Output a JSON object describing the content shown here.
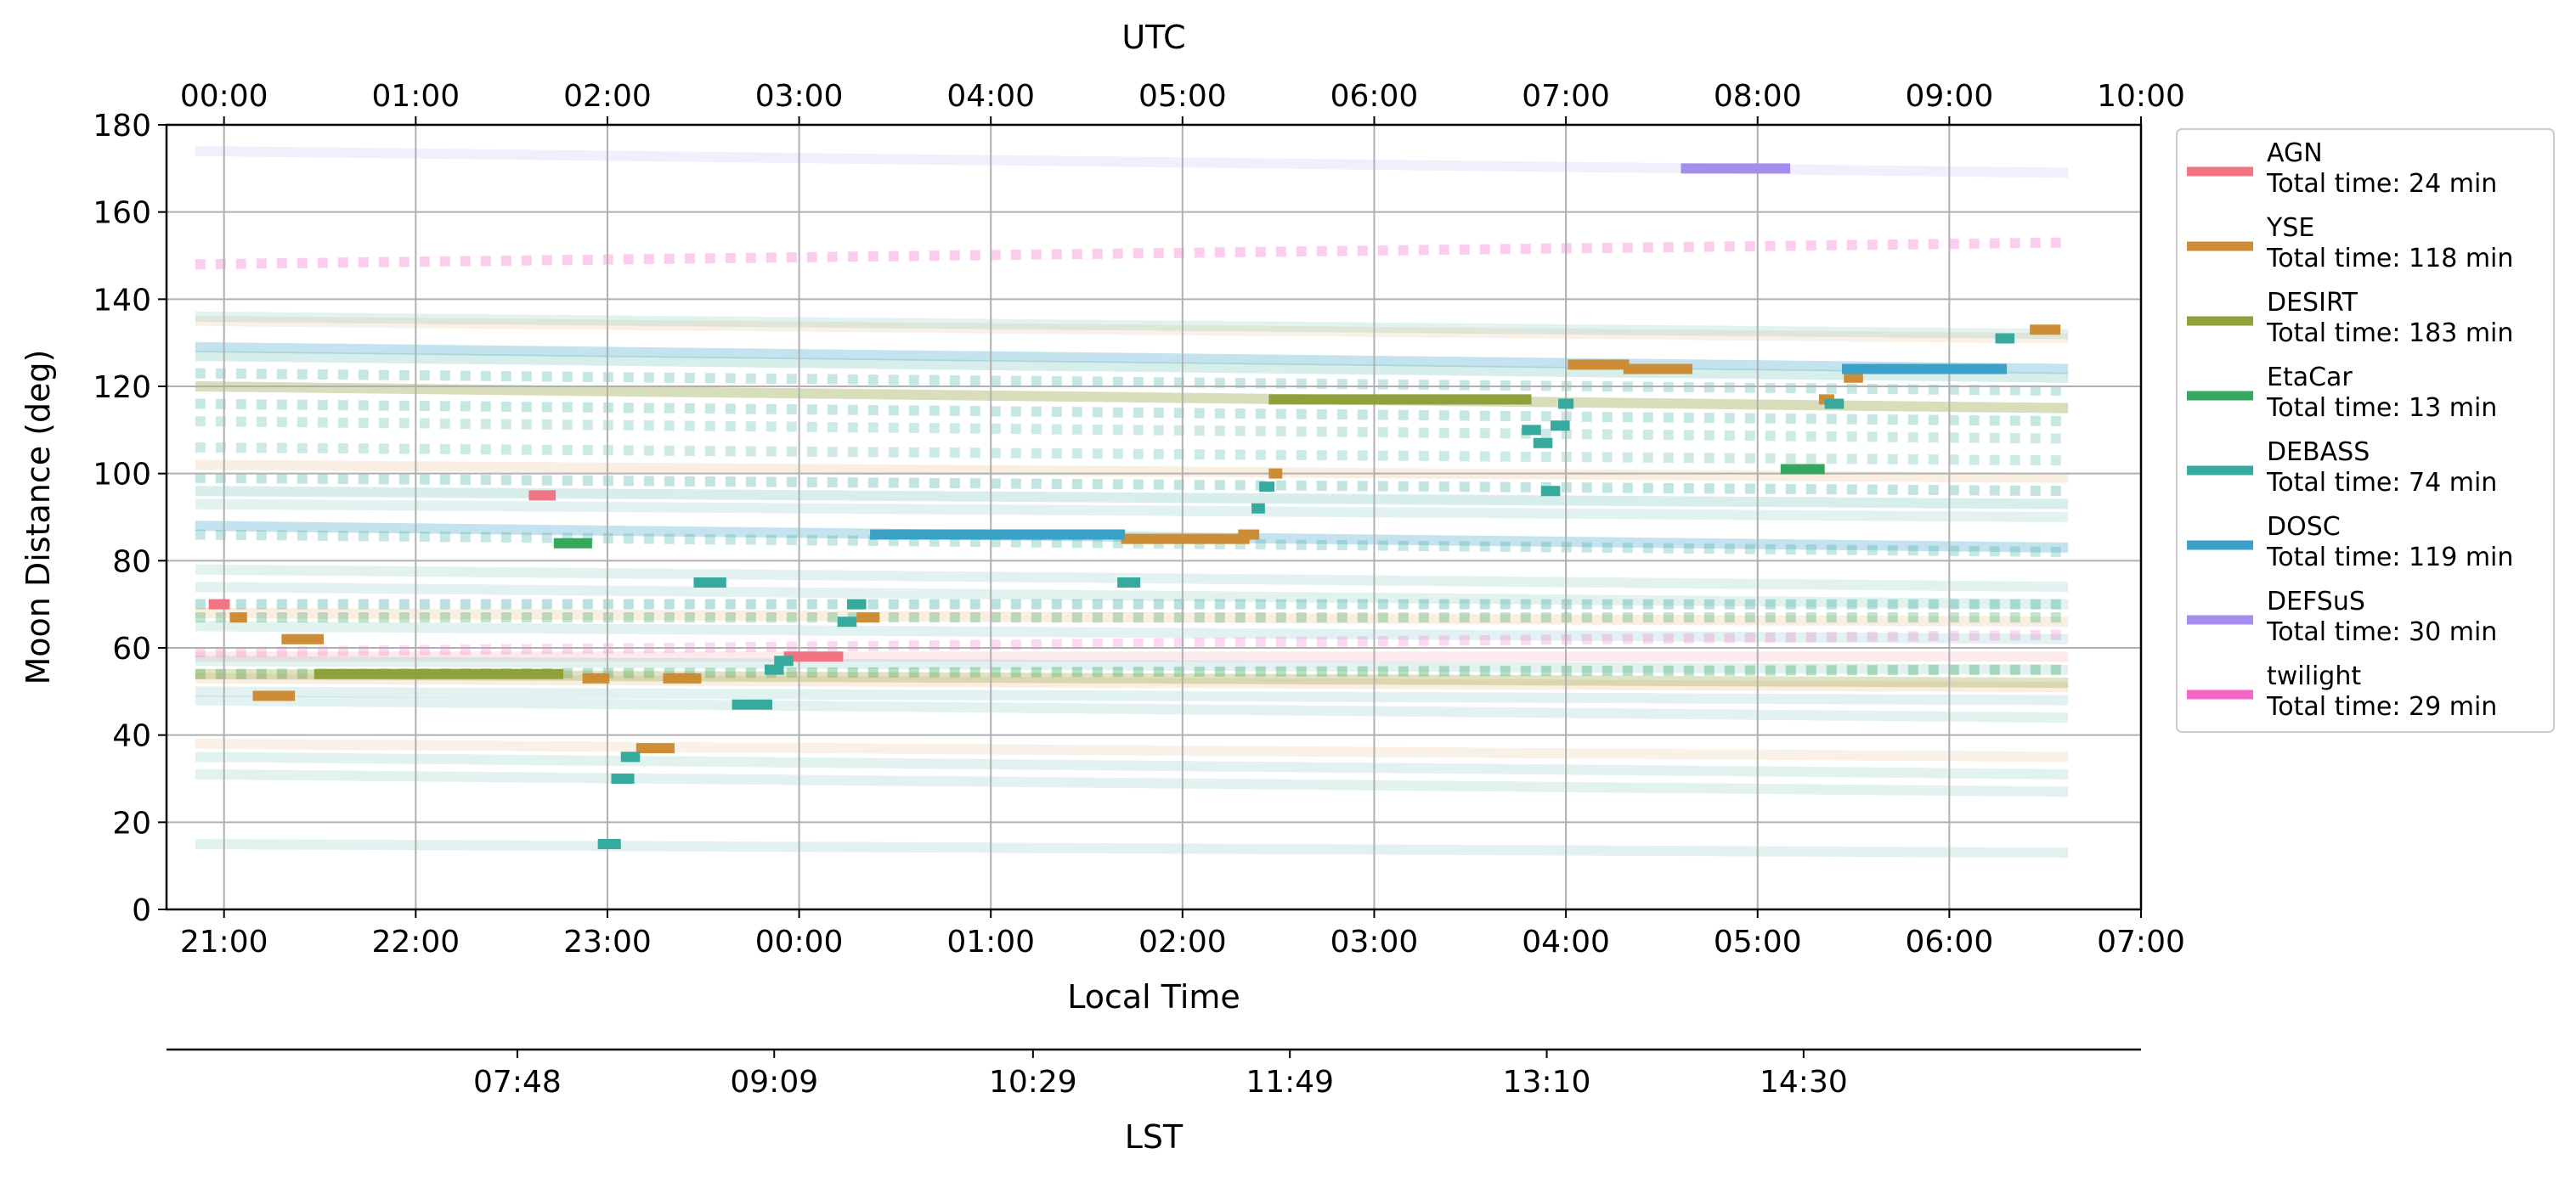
{
  "chart_data": {
    "type": "line",
    "ylabel": "Moon Distance (deg)",
    "ylim": [
      0,
      180
    ],
    "yticks": [
      0,
      20,
      40,
      60,
      80,
      100,
      120,
      140,
      160,
      180
    ],
    "grid": true,
    "legend_placement": "outside-right",
    "x_local": {
      "label": "Local Time",
      "range_hours": [
        -3.3,
        7.0
      ],
      "ticks": [
        {
          "h": -3,
          "label": "21:00"
        },
        {
          "h": -2,
          "label": "22:00"
        },
        {
          "h": -1,
          "label": "23:00"
        },
        {
          "h": 0,
          "label": "00:00"
        },
        {
          "h": 1,
          "label": "01:00"
        },
        {
          "h": 2,
          "label": "02:00"
        },
        {
          "h": 3,
          "label": "03:00"
        },
        {
          "h": 4,
          "label": "04:00"
        },
        {
          "h": 5,
          "label": "05:00"
        },
        {
          "h": 6,
          "label": "06:00"
        },
        {
          "h": 7,
          "label": "07:00"
        }
      ]
    },
    "x_utc": {
      "label": "UTC",
      "ticks": [
        {
          "h": -3,
          "label": "00:00"
        },
        {
          "h": -2,
          "label": "01:00"
        },
        {
          "h": -1,
          "label": "02:00"
        },
        {
          "h": 0,
          "label": "03:00"
        },
        {
          "h": 1,
          "label": "04:00"
        },
        {
          "h": 2,
          "label": "05:00"
        },
        {
          "h": 3,
          "label": "06:00"
        },
        {
          "h": 4,
          "label": "07:00"
        },
        {
          "h": 5,
          "label": "08:00"
        },
        {
          "h": 6,
          "label": "09:00"
        },
        {
          "h": 7,
          "label": "10:00"
        }
      ]
    },
    "x_lst": {
      "label": "LST",
      "ticks": [
        {
          "h": -1.47,
          "label": "07:48"
        },
        {
          "h": -0.13,
          "label": "09:09"
        },
        {
          "h": 1.22,
          "label": "10:29"
        },
        {
          "h": 2.56,
          "label": "11:49"
        },
        {
          "h": 3.9,
          "label": "13:10"
        },
        {
          "h": 5.24,
          "label": "14:30"
        }
      ]
    },
    "series": [
      {
        "name": "AGN",
        "total": "Total time: 24 min",
        "color": "#f07484",
        "segments": [
          [
            -3.08,
            -2.97,
            70
          ],
          [
            -1.41,
            -1.27,
            95
          ],
          [
            -0.08,
            0.23,
            58
          ]
        ]
      },
      {
        "name": "YSE",
        "total": "Total time: 118 min",
        "color": "#cd8d36",
        "segments": [
          [
            -2.97,
            -2.88,
            67
          ],
          [
            -2.85,
            -2.63,
            49
          ],
          [
            -2.7,
            -2.48,
            62
          ],
          [
            -1.13,
            -0.99,
            53
          ],
          [
            -0.85,
            -0.65,
            37
          ],
          [
            -0.71,
            -0.51,
            53
          ],
          [
            0.3,
            0.42,
            67
          ],
          [
            1.68,
            2.35,
            85
          ],
          [
            2.29,
            2.4,
            86
          ],
          [
            2.45,
            2.52,
            100
          ],
          [
            4.01,
            4.33,
            125
          ],
          [
            4.3,
            4.66,
            124
          ],
          [
            5.32,
            5.4,
            117
          ],
          [
            5.45,
            5.55,
            122
          ],
          [
            6.42,
            6.58,
            133
          ]
        ]
      },
      {
        "name": "DESIRT",
        "total": "Total time: 183 min",
        "color": "#8fa13a",
        "segments": [
          [
            -2.53,
            -1.23,
            54
          ],
          [
            2.45,
            3.82,
            117
          ]
        ]
      },
      {
        "name": "EtaCar",
        "total": "Total time: 13 min",
        "color": "#36a75e",
        "segments": [
          [
            -1.28,
            -1.08,
            84
          ],
          [
            5.12,
            5.35,
            101
          ]
        ]
      },
      {
        "name": "DEBASS",
        "total": "Total time: 74 min",
        "color": "#36aa9d",
        "segments": [
          [
            -1.05,
            -0.93,
            15
          ],
          [
            -0.98,
            -0.86,
            30
          ],
          [
            -0.93,
            -0.83,
            35
          ],
          [
            -0.55,
            -0.38,
            75
          ],
          [
            -0.35,
            -0.14,
            47
          ],
          [
            -0.18,
            -0.08,
            55
          ],
          [
            -0.13,
            -0.03,
            57
          ],
          [
            0.2,
            0.3,
            66
          ],
          [
            0.25,
            0.35,
            70
          ],
          [
            1.66,
            1.78,
            75
          ],
          [
            2.36,
            2.43,
            92
          ],
          [
            2.4,
            2.48,
            97
          ],
          [
            3.77,
            3.87,
            110
          ],
          [
            3.83,
            3.93,
            107
          ],
          [
            3.87,
            3.97,
            96
          ],
          [
            3.92,
            4.02,
            111
          ],
          [
            3.96,
            4.04,
            116
          ],
          [
            5.35,
            5.45,
            116
          ],
          [
            6.24,
            6.34,
            131
          ]
        ]
      },
      {
        "name": "DOSC",
        "total": "Total time: 119 min",
        "color": "#3aa2c9",
        "segments": [
          [
            0.37,
            1.7,
            86
          ],
          [
            5.44,
            6.3,
            124
          ]
        ]
      },
      {
        "name": "DEFSuS",
        "total": "Total time: 30 min",
        "color": "#a48ded",
        "segments": [
          [
            4.6,
            5.17,
            170
          ]
        ]
      },
      {
        "name": "twilight",
        "total": "Total time: 29 min",
        "color": "#f466c9",
        "segments": []
      }
    ],
    "background_tracks": [
      {
        "color": "#a48ded",
        "y0": 174,
        "y1": 169,
        "style": "solid",
        "opacity": 0.14
      },
      {
        "color": "#f466c9",
        "y0": 148,
        "y1": 153,
        "style": "dotted",
        "opacity": 0.32
      },
      {
        "color": "#36aa9d",
        "y0": 136,
        "y1": 132,
        "style": "solid",
        "opacity": 0.15
      },
      {
        "color": "#cd8d36",
        "y0": 135,
        "y1": 131,
        "style": "solid",
        "opacity": 0.12
      },
      {
        "color": "#3aa2c9",
        "y0": 129,
        "y1": 124,
        "style": "solid",
        "opacity": 0.3
      },
      {
        "color": "#36aa9d",
        "y0": 127,
        "y1": 122,
        "style": "solid",
        "opacity": 0.2
      },
      {
        "color": "#36aa9d",
        "y0": 123,
        "y1": 119,
        "style": "dotted",
        "opacity": 0.28
      },
      {
        "color": "#8fa13a",
        "y0": 120,
        "y1": 115,
        "style": "solid",
        "opacity": 0.35
      },
      {
        "color": "#36aa9d",
        "y0": 116,
        "y1": 112,
        "style": "dotted",
        "opacity": 0.28
      },
      {
        "color": "#36aa9d",
        "y0": 112,
        "y1": 108,
        "style": "dotted",
        "opacity": 0.25
      },
      {
        "color": "#36aa9d",
        "y0": 106,
        "y1": 103,
        "style": "dotted",
        "opacity": 0.25
      },
      {
        "color": "#cd8d36",
        "y0": 102,
        "y1": 99,
        "style": "solid",
        "opacity": 0.15
      },
      {
        "color": "#36aa9d",
        "y0": 99,
        "y1": 96,
        "style": "dotted",
        "opacity": 0.3
      },
      {
        "color": "#36aa9d",
        "y0": 96,
        "y1": 93,
        "style": "solid",
        "opacity": 0.2
      },
      {
        "color": "#36aa9d",
        "y0": 93,
        "y1": 90,
        "style": "solid",
        "opacity": 0.15
      },
      {
        "color": "#3aa2c9",
        "y0": 88,
        "y1": 83,
        "style": "solid",
        "opacity": 0.3
      },
      {
        "color": "#36aa9d",
        "y0": 86,
        "y1": 82,
        "style": "dotted",
        "opacity": 0.28
      },
      {
        "color": "#36aa9d",
        "y0": 78,
        "y1": 74,
        "style": "solid",
        "opacity": 0.15
      },
      {
        "color": "#36aa9d",
        "y0": 74,
        "y1": 70,
        "style": "solid",
        "opacity": 0.15
      },
      {
        "color": "#36aa9d",
        "y0": 70,
        "y1": 70,
        "style": "dotted",
        "opacity": 0.35
      },
      {
        "color": "#cd8d36",
        "y0": 68,
        "y1": 66,
        "style": "solid",
        "opacity": 0.15
      },
      {
        "color": "#36a75e",
        "y0": 67,
        "y1": 67,
        "style": "dotted",
        "opacity": 0.3
      },
      {
        "color": "#36aa9d",
        "y0": 65,
        "y1": 62,
        "style": "solid",
        "opacity": 0.15
      },
      {
        "color": "#f466c9",
        "y0": 59,
        "y1": 63,
        "style": "dotted",
        "opacity": 0.25
      },
      {
        "color": "#f07484",
        "y0": 58,
        "y1": 58,
        "style": "solid",
        "opacity": 0.15
      },
      {
        "color": "#36aa9d",
        "y0": 57,
        "y1": 55,
        "style": "solid",
        "opacity": 0.15
      },
      {
        "color": "#36a75e",
        "y0": 54,
        "y1": 55,
        "style": "dotted",
        "opacity": 0.35
      },
      {
        "color": "#8fa13a",
        "y0": 54,
        "y1": 52,
        "style": "solid",
        "opacity": 0.3
      },
      {
        "color": "#cd8d36",
        "y0": 53,
        "y1": 51,
        "style": "solid",
        "opacity": 0.15
      },
      {
        "color": "#36aa9d",
        "y0": 50,
        "y1": 48,
        "style": "solid",
        "opacity": 0.15
      },
      {
        "color": "#36aa9d",
        "y0": 48,
        "y1": 44,
        "style": "solid",
        "opacity": 0.15
      },
      {
        "color": "#cd8d36",
        "y0": 38,
        "y1": 35,
        "style": "solid",
        "opacity": 0.12
      },
      {
        "color": "#36aa9d",
        "y0": 35,
        "y1": 31,
        "style": "solid",
        "opacity": 0.15
      },
      {
        "color": "#36aa9d",
        "y0": 31,
        "y1": 27,
        "style": "solid",
        "opacity": 0.15
      },
      {
        "color": "#36aa9d",
        "y0": 15,
        "y1": 13,
        "style": "solid",
        "opacity": 0.15
      }
    ]
  }
}
